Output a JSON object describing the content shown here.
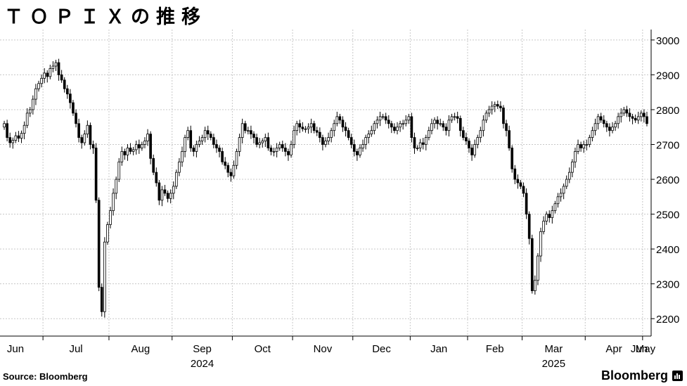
{
  "title": "ＴＯＰＩＸの推移",
  "source": "Source:  Bloomberg",
  "brand": "Bloomberg",
  "colors": {
    "up": "#ffffff",
    "down": "#000000",
    "grid": "#c8c8c8",
    "axis": "#000000"
  },
  "chart_data": {
    "type": "candlestick",
    "title": "ＴＯＰＩＸの推移",
    "ylim": [
      2150,
      3030
    ],
    "yticks": [
      2200,
      2300,
      2400,
      2500,
      2600,
      2700,
      2800,
      2900,
      3000
    ],
    "y_axis_side": "right",
    "grid": true,
    "months": [
      "Jun",
      "Jul",
      "Aug",
      "Sep",
      "Oct",
      "Nov",
      "Dec",
      "Jan",
      "Feb",
      "Mar",
      "Apr",
      "May",
      "Jun"
    ],
    "years": [
      {
        "label": "2024",
        "month": "Sep"
      },
      {
        "label": "2025",
        "month": "Mar"
      }
    ],
    "note": "Approximate daily closes read from the chart; month boundaries at index positions",
    "month_start_index": [
      0,
      14,
      37,
      59,
      80,
      101,
      122,
      142,
      162,
      181,
      203,
      223,
      243
    ],
    "closes": [
      2760,
      2720,
      2705,
      2712,
      2725,
      2718,
      2732,
      2755,
      2790,
      2800,
      2830,
      2860,
      2875,
      2890,
      2905,
      2895,
      2918,
      2925,
      2935,
      2900,
      2885,
      2860,
      2845,
      2820,
      2790,
      2760,
      2720,
      2705,
      2730,
      2755,
      2700,
      2690,
      2540,
      2290,
      2220,
      2420,
      2470,
      2510,
      2560,
      2600,
      2650,
      2680,
      2670,
      2690,
      2680,
      2685,
      2700,
      2690,
      2700,
      2710,
      2730,
      2660,
      2620,
      2590,
      2540,
      2570,
      2560,
      2545,
      2560,
      2580,
      2620,
      2650,
      2680,
      2720,
      2740,
      2690,
      2680,
      2700,
      2710,
      2720,
      2740,
      2730,
      2720,
      2700,
      2690,
      2680,
      2650,
      2640,
      2620,
      2610,
      2640,
      2680,
      2720,
      2760,
      2740,
      2740,
      2730,
      2720,
      2700,
      2705,
      2710,
      2720,
      2690,
      2680,
      2680,
      2690,
      2700,
      2690,
      2680,
      2670,
      2700,
      2740,
      2760,
      2750,
      2745,
      2745,
      2750,
      2760,
      2740,
      2735,
      2720,
      2700,
      2710,
      2720,
      2740,
      2760,
      2780,
      2770,
      2750,
      2740,
      2720,
      2700,
      2680,
      2670,
      2690,
      2700,
      2720,
      2730,
      2740,
      2760,
      2770,
      2780,
      2780,
      2770,
      2760,
      2750,
      2740,
      2750,
      2760,
      2760,
      2770,
      2780,
      2720,
      2690,
      2690,
      2705,
      2700,
      2720,
      2740,
      2760,
      2770,
      2760,
      2760,
      2750,
      2740,
      2770,
      2780,
      2780,
      2775,
      2740,
      2720,
      2710,
      2690,
      2670,
      2700,
      2720,
      2740,
      2770,
      2790,
      2800,
      2810,
      2815,
      2810,
      2805,
      2760,
      2740,
      2690,
      2630,
      2600,
      2590,
      2580,
      2560,
      2500,
      2430,
      2280,
      2310,
      2380,
      2450,
      2480,
      2500,
      2490,
      2510,
      2530,
      2550,
      2560,
      2580,
      2600,
      2620,
      2650,
      2680,
      2700,
      2690,
      2700,
      2700,
      2720,
      2740,
      2760,
      2780,
      2770,
      2760,
      2750,
      2740,
      2750,
      2760,
      2780,
      2790,
      2800,
      2790,
      2780,
      2775,
      2770,
      2780,
      2790,
      2780,
      2760
    ]
  }
}
